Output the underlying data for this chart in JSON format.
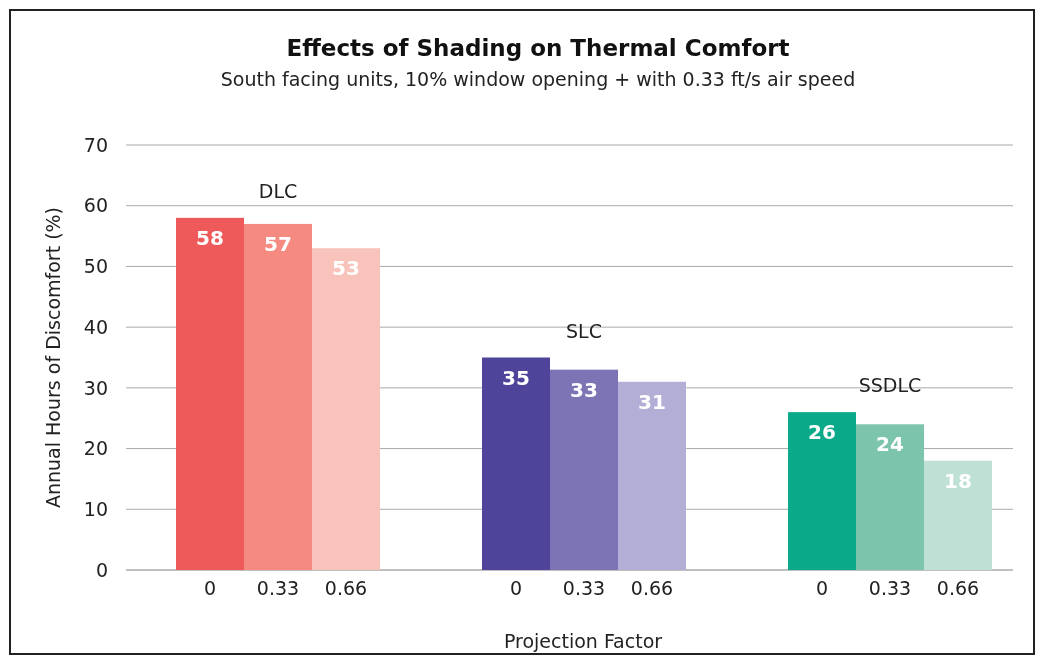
{
  "chart_data": {
    "type": "bar",
    "title": "Effects of Shading on Thermal Comfort",
    "subtitle": "South facing units, 10% window opening + with 0.33 ft/s air speed",
    "xlabel": "Projection Factor",
    "ylabel": "Annual Hours of Discomfort (%)",
    "categories": [
      "0",
      "0.33",
      "0.66",
      null,
      "0",
      "0.33",
      "0.66",
      null,
      "0",
      "0.33",
      "0.66"
    ],
    "values": [
      58,
      57,
      53,
      null,
      35,
      33,
      31,
      null,
      26,
      24,
      18
    ],
    "colors": [
      "#ee5a5a",
      "#f48a80",
      "#f8c3ba",
      null,
      "#4e4499",
      "#7d74b6",
      "#b3aed6",
      null,
      "#0aa98a",
      "#7cc5ac",
      "#bfe0d4"
    ],
    "annotations": [
      "DLC",
      "SLC",
      "SSDLC"
    ],
    "ylim": [
      0,
      70
    ],
    "yticks": [
      0,
      10,
      20,
      30,
      40,
      50,
      60,
      70
    ],
    "grid": "y",
    "data_labels": true
  }
}
